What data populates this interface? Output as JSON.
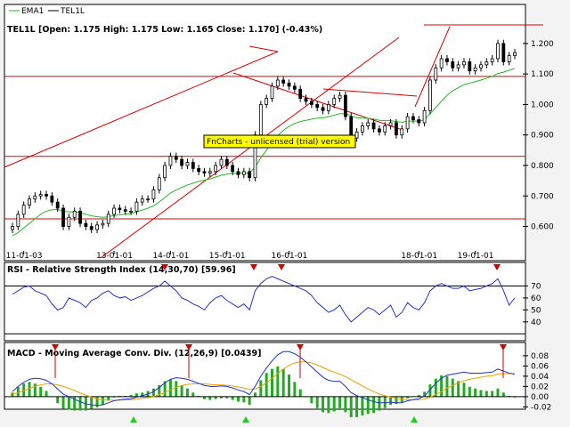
{
  "legend": {
    "ema_label": "EMA1",
    "price_label": "TEL1L"
  },
  "colors": {
    "ema": "#22bb22",
    "price": "#000000",
    "trendline": "#dd0000",
    "rsi": "#2233cc",
    "macd": "#2233cc",
    "signal": "#f0a000",
    "histogram": "#22aa22",
    "arrow": "#cc0000",
    "up_arrow": "#22cc22",
    "watermark_bg": "#ffff00"
  },
  "watermark": "FnCharts - unlicensed (trial) version",
  "chart_data": [
    {
      "type": "candlestick",
      "title": "TEL1L [Open: 1.175  High: 1.175  Low: 1.165  Close: 1.170] (-0.43%)",
      "x_tick_labels": [
        "11-01-03",
        "13-01-01",
        "14-01-01",
        "15-01-01",
        "16-01-01",
        "18-01-01",
        "19-01-01"
      ],
      "y_tick_labels": [
        "1.200",
        "1.100",
        "1.000",
        "0.900",
        "0.800",
        "0.700",
        "0.600"
      ],
      "y_ticks": [
        1.2,
        1.1,
        1.0,
        0.9,
        0.8,
        0.7,
        0.6
      ],
      "ylim": [
        0.52,
        1.22
      ],
      "horizontal_lines": [
        1.092,
        0.83,
        0.625
      ],
      "series": [
        {
          "name": "TEL1L",
          "close": [
            0.6,
            0.64,
            0.67,
            0.69,
            0.7,
            0.705,
            0.7,
            0.68,
            0.66,
            0.6,
            0.63,
            0.65,
            0.61,
            0.6,
            0.59,
            0.605,
            0.61,
            0.64,
            0.66,
            0.655,
            0.65,
            0.65,
            0.68,
            0.69,
            0.69,
            0.72,
            0.76,
            0.8,
            0.83,
            0.82,
            0.8,
            0.81,
            0.79,
            0.78,
            0.775,
            0.78,
            0.8,
            0.82,
            0.8,
            0.78,
            0.77,
            0.78,
            0.76,
            0.9,
            1.0,
            1.02,
            1.06,
            1.08,
            1.07,
            1.06,
            1.05,
            1.02,
            1.01,
            1.0,
            0.99,
            0.98,
            1.0,
            1.02,
            1.03,
            0.96,
            0.89,
            0.91,
            0.93,
            0.94,
            0.92,
            0.91,
            0.93,
            0.94,
            0.9,
            0.92,
            0.96,
            0.95,
            0.94,
            0.98,
            1.08,
            1.12,
            1.15,
            1.14,
            1.12,
            1.13,
            1.14,
            1.11,
            1.12,
            1.13,
            1.14,
            1.15,
            1.2,
            1.14,
            1.16,
            1.17
          ]
        },
        {
          "name": "EMA1",
          "values": [
            0.57,
            0.58,
            0.595,
            0.61,
            0.625,
            0.64,
            0.65,
            0.655,
            0.656,
            0.65,
            0.648,
            0.648,
            0.645,
            0.64,
            0.635,
            0.632,
            0.63,
            0.632,
            0.636,
            0.638,
            0.64,
            0.642,
            0.648,
            0.654,
            0.66,
            0.668,
            0.68,
            0.695,
            0.71,
            0.72,
            0.728,
            0.736,
            0.742,
            0.748,
            0.752,
            0.756,
            0.762,
            0.768,
            0.772,
            0.774,
            0.775,
            0.776,
            0.775,
            0.795,
            0.825,
            0.85,
            0.875,
            0.898,
            0.915,
            0.928,
            0.938,
            0.944,
            0.948,
            0.952,
            0.955,
            0.956,
            0.96,
            0.965,
            0.97,
            0.97,
            0.962,
            0.957,
            0.955,
            0.955,
            0.952,
            0.948,
            0.947,
            0.947,
            0.944,
            0.942,
            0.945,
            0.946,
            0.946,
            0.95,
            0.97,
            0.99,
            1.01,
            1.03,
            1.045,
            1.055,
            1.065,
            1.07,
            1.075,
            1.08,
            1.086,
            1.092,
            1.102,
            1.106,
            1.112,
            1.118
          ]
        }
      ]
    },
    {
      "type": "line",
      "title": "RSI - Relative Strength Index (14,30,70) [59.96]",
      "y_tick_labels": [
        "70",
        "60",
        "50",
        "40"
      ],
      "y_ticks": [
        70,
        60,
        50,
        40
      ],
      "ylim": [
        28,
        80
      ],
      "levels": [
        70,
        30
      ],
      "series": [
        {
          "name": "RSI",
          "values": [
            63,
            66,
            69,
            70,
            66,
            64,
            62,
            55,
            50,
            52,
            60,
            58,
            56,
            52,
            58,
            60,
            64,
            66,
            62,
            60,
            61,
            58,
            60,
            62,
            65,
            68,
            70,
            74,
            70,
            66,
            60,
            58,
            55,
            53,
            50,
            56,
            60,
            62,
            58,
            55,
            52,
            55,
            50,
            66,
            72,
            76,
            78,
            76,
            74,
            72,
            70,
            68,
            66,
            62,
            56,
            52,
            48,
            50,
            54,
            46,
            40,
            44,
            48,
            52,
            50,
            46,
            50,
            54,
            44,
            48,
            56,
            52,
            50,
            56,
            66,
            70,
            72,
            70,
            68,
            68,
            70,
            66,
            67,
            68,
            70,
            72,
            76,
            66,
            54,
            60
          ]
        }
      ]
    },
    {
      "type": "line",
      "title": "MACD - Moving Average Conv. Div. (12,26,9) [0.0439]",
      "y_tick_labels": [
        "0.08",
        "0.06",
        "0.04",
        "0.02",
        "0.00",
        "-0.02"
      ],
      "y_ticks": [
        0.08,
        0.06,
        0.04,
        0.02,
        0.0,
        -0.02
      ],
      "ylim": [
        -0.028,
        0.092
      ],
      "series": [
        {
          "name": "MACD",
          "values": [
            0.01,
            0.02,
            0.028,
            0.034,
            0.036,
            0.035,
            0.032,
            0.025,
            0.015,
            0.005,
            0.0,
            -0.005,
            -0.01,
            -0.014,
            -0.016,
            -0.017,
            -0.016,
            -0.012,
            -0.008,
            -0.006,
            -0.005,
            -0.004,
            -0.001,
            0.002,
            0.005,
            0.01,
            0.018,
            0.027,
            0.034,
            0.037,
            0.036,
            0.034,
            0.03,
            0.026,
            0.022,
            0.02,
            0.02,
            0.021,
            0.02,
            0.017,
            0.013,
            0.01,
            0.004,
            0.02,
            0.04,
            0.056,
            0.07,
            0.082,
            0.088,
            0.088,
            0.084,
            0.077,
            0.068,
            0.058,
            0.048,
            0.038,
            0.032,
            0.03,
            0.03,
            0.02,
            0.008,
            0.002,
            -0.002,
            -0.006,
            -0.01,
            -0.012,
            -0.012,
            -0.011,
            -0.012,
            -0.012,
            -0.008,
            -0.006,
            -0.004,
            0.001,
            0.014,
            0.026,
            0.036,
            0.042,
            0.044,
            0.046,
            0.048,
            0.046,
            0.046,
            0.046,
            0.047,
            0.048,
            0.054,
            0.05,
            0.046,
            0.044
          ]
        },
        {
          "name": "Signal",
          "values": [
            0.005,
            0.008,
            0.012,
            0.016,
            0.02,
            0.023,
            0.025,
            0.025,
            0.023,
            0.02,
            0.016,
            0.012,
            0.007,
            0.003,
            -0.001,
            -0.004,
            -0.006,
            -0.007,
            -0.007,
            -0.007,
            -0.006,
            -0.006,
            -0.005,
            -0.003,
            -0.002,
            0.0,
            0.004,
            0.008,
            0.013,
            0.018,
            0.022,
            0.024,
            0.025,
            0.025,
            0.025,
            0.024,
            0.023,
            0.023,
            0.022,
            0.021,
            0.019,
            0.017,
            0.014,
            0.015,
            0.02,
            0.027,
            0.036,
            0.045,
            0.054,
            0.061,
            0.066,
            0.068,
            0.068,
            0.066,
            0.062,
            0.057,
            0.052,
            0.048,
            0.044,
            0.039,
            0.033,
            0.027,
            0.021,
            0.015,
            0.01,
            0.005,
            0.002,
            -0.001,
            -0.003,
            -0.005,
            -0.006,
            -0.006,
            -0.006,
            -0.005,
            -0.001,
            0.004,
            0.01,
            0.017,
            0.022,
            0.027,
            0.031,
            0.034,
            0.036,
            0.038,
            0.04,
            0.041,
            0.044,
            0.045,
            0.045,
            0.045
          ]
        }
      ]
    }
  ]
}
